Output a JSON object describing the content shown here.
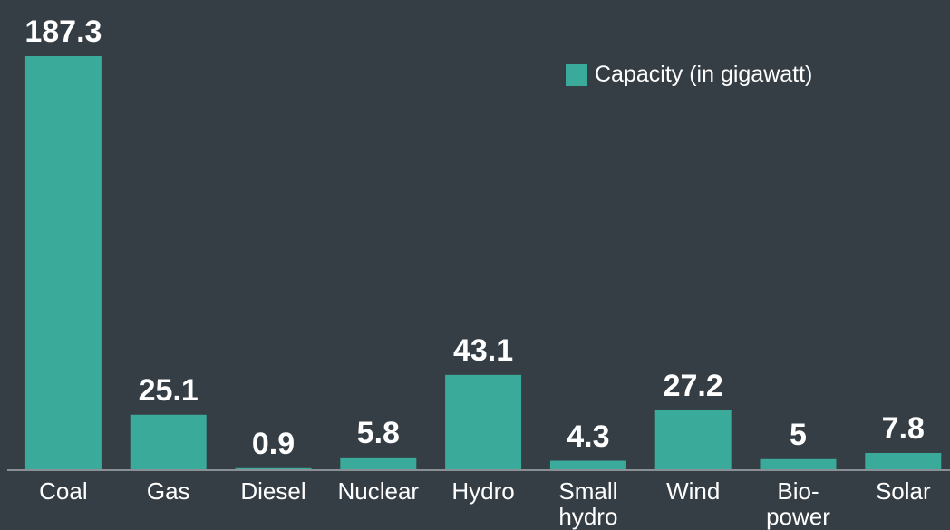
{
  "chart_data": {
    "type": "bar",
    "categories": [
      "Coal",
      "Gas",
      "Diesel",
      "Nuclear",
      "Hydro",
      "Small hydro",
      "Wind",
      "Bio-power",
      "Solar"
    ],
    "series": [
      {
        "name": "Capacity (in gigawatt)",
        "color": "#3aab9b",
        "values": [
          187.3,
          25.1,
          0.9,
          5.8,
          43.1,
          4.3,
          27.2,
          5,
          7.8
        ]
      }
    ],
    "ylim": [
      0,
      187.3
    ],
    "legend": "upper right"
  }
}
